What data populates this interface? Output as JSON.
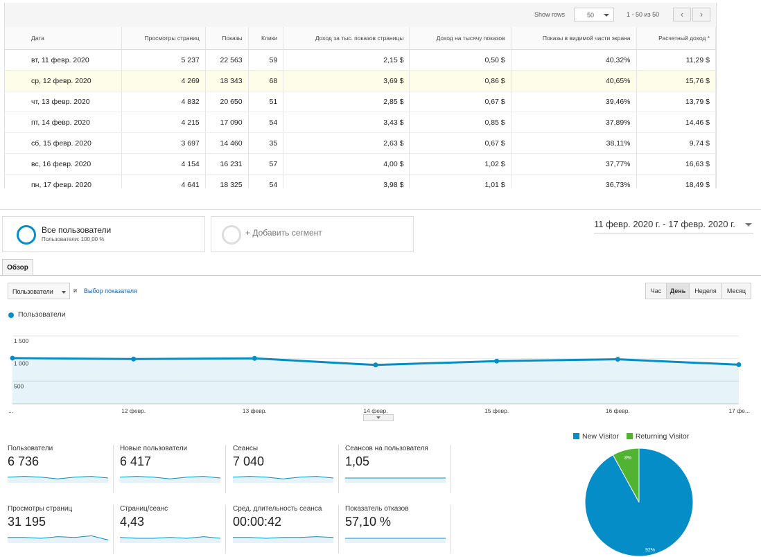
{
  "table": {
    "show_rows_label": "Show rows",
    "rows_per_page": "50",
    "range_text": "1 - 50 из 50",
    "prev_icon": "‹",
    "next_icon": "›",
    "headers": [
      "Дата",
      "Просмотры страниц",
      "Показы",
      "Клики",
      "Доход за тыс. показов страницы",
      "Доход на тысячу показов",
      "Показы в видимой части экрана",
      "Расчетный доход *"
    ],
    "rows": [
      [
        "вт, 11 февр. 2020",
        "5 237",
        "22 563",
        "59",
        "2,15 $",
        "0,50 $",
        "40,32%",
        "11,29 $"
      ],
      [
        "ср, 12 февр. 2020",
        "4 269",
        "18 343",
        "68",
        "3,69 $",
        "0,86 $",
        "40,65%",
        "15,76 $"
      ],
      [
        "чт, 13 февр. 2020",
        "4 832",
        "20 650",
        "51",
        "2,85 $",
        "0,67 $",
        "39,46%",
        "13,79 $"
      ],
      [
        "пт, 14 февр. 2020",
        "4 215",
        "17 090",
        "54",
        "3,43 $",
        "0,85 $",
        "37,89%",
        "14,46 $"
      ],
      [
        "сб, 15 февр. 2020",
        "3 697",
        "14 460",
        "35",
        "2,63 $",
        "0,67 $",
        "38,11%",
        "9,74 $"
      ],
      [
        "вс, 16 февр. 2020",
        "4 154",
        "16 231",
        "57",
        "4,00 $",
        "1,02 $",
        "37,77%",
        "16,63 $"
      ],
      [
        "пн, 17 февр. 2020",
        "4 641",
        "18 325",
        "54",
        "3,98 $",
        "1,01 $",
        "36,73%",
        "18,49 $"
      ]
    ],
    "highlight_row": 1
  },
  "segments": {
    "all_users_title": "Все пользователи",
    "all_users_sub": "Пользователи: 100,00 %",
    "add_segment": "+ Добавить сегмент"
  },
  "date_range": "11 февр. 2020 г. - 17 февр. 2020 г.",
  "tabs": {
    "overview": "Обзор"
  },
  "controls": {
    "metric": "Пользователи",
    "and": "и",
    "pick_metric": "Выбор показателя",
    "granularity": [
      "Час",
      "День",
      "Неделя",
      "Месяц"
    ],
    "active_granularity": "День"
  },
  "chart_data": {
    "type": "area",
    "series": [
      {
        "name": "Пользователи",
        "values": [
          1010,
          990,
          1005,
          860,
          945,
          985,
          865
        ]
      }
    ],
    "x_tick_labels": [
      "...",
      "12 февр.",
      "13 февр.",
      "14 февр.",
      "15 февр.",
      "16 февр.",
      "17 фе..."
    ],
    "y_tick_labels": [
      "1 500",
      "1 000",
      "500"
    ],
    "y_ticks": [
      1500,
      1000,
      500
    ],
    "ylim": [
      0,
      1850
    ],
    "color": "#058dc7",
    "grid": true
  },
  "metrics": [
    {
      "label": "Пользователи",
      "value": "6 736",
      "spark": [
        6,
        7,
        6,
        4,
        6,
        7,
        5
      ]
    },
    {
      "label": "Новые пользователи",
      "value": "6 417",
      "spark": [
        6,
        7,
        6,
        4,
        6,
        7,
        5
      ]
    },
    {
      "label": "Сеансы",
      "value": "7 040",
      "spark": [
        6,
        7,
        6,
        4,
        6,
        7,
        5
      ]
    },
    {
      "label": "Сеансов на пользователя",
      "value": "1,05",
      "spark": [
        5,
        5,
        5,
        5,
        5,
        5,
        5
      ]
    },
    {
      "label": "Просмотры страниц",
      "value": "31 195",
      "spark": [
        6,
        6,
        5,
        7,
        6,
        8,
        3
      ]
    },
    {
      "label": "Страниц/сеанс",
      "value": "4,43",
      "spark": [
        6,
        5,
        5,
        6,
        5,
        7,
        5
      ]
    },
    {
      "label": "Сред. длительность сеанса",
      "value": "00:00:42",
      "spark": [
        6,
        6,
        5,
        6,
        6,
        7,
        6
      ]
    },
    {
      "label": "Показатель отказов",
      "value": "57,10 %",
      "spark": [
        5,
        5,
        5,
        5,
        5,
        5,
        5
      ]
    }
  ],
  "pie_chart_data": {
    "type": "pie",
    "labels": [
      "New Visitor",
      "Returning Visitor"
    ],
    "values": [
      92,
      8
    ],
    "value_labels": [
      "92%",
      "8%"
    ],
    "colors": [
      "#058dc7",
      "#50b432"
    ]
  }
}
